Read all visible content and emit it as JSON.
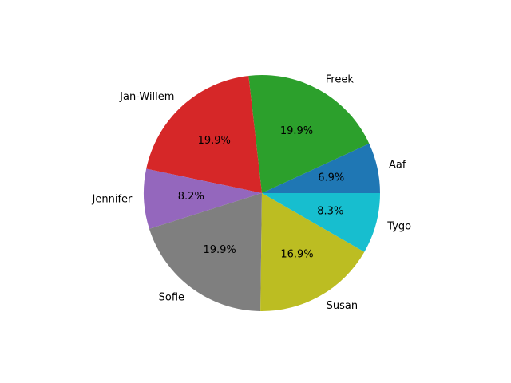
{
  "chart_data": {
    "type": "pie",
    "title": "",
    "labels": [
      "Aaf",
      "Freek",
      "Jan-Willem",
      "Jennifer",
      "Sofie",
      "Susan",
      "Tygo"
    ],
    "values": [
      6.9,
      19.9,
      19.9,
      8.2,
      19.9,
      16.9,
      8.3
    ],
    "value_labels": [
      "6.9%",
      "19.9%",
      "19.9%",
      "8.2%",
      "19.9%",
      "16.9%",
      "8.3%"
    ],
    "colors": [
      "#1f77b4",
      "#2ca02c",
      "#d62728",
      "#9467bd",
      "#7f7f7f",
      "#bcbd22",
      "#17becf"
    ],
    "start_angle": 0,
    "direction": "counterclockwise",
    "legend": "none"
  }
}
